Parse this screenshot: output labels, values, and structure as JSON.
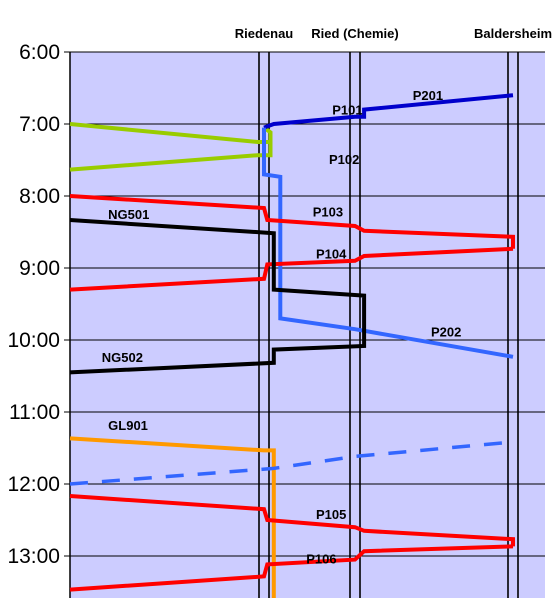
{
  "chart_data": {
    "type": "line",
    "title": "",
    "xlabel": "",
    "ylabel": "",
    "y_axis": {
      "unit": "minutes since midnight",
      "range": [
        360,
        815
      ],
      "tick_values": [
        360,
        420,
        480,
        540,
        600,
        660,
        720,
        780
      ],
      "tick_labels": [
        "6:00",
        "7:00",
        "8:00",
        "9:00",
        "10:00",
        "11:00",
        "12:00",
        "13:00"
      ]
    },
    "grid": true,
    "stations": [
      {
        "name": "Riedenau",
        "km": 0
      },
      {
        "name": "Ried (Chemie)",
        "km": 2.8
      },
      {
        "name": "Baldersheim",
        "km": 8
      }
    ],
    "colors": {
      "plot_bg": "#ccccff",
      "green": "#99cc00",
      "blue": "#0000cc",
      "lightblue": "#3366ff",
      "red": "#ff0000",
      "black": "#000000",
      "orange": "#ff9900"
    },
    "series": [
      {
        "name": "P101",
        "color": "green",
        "label_at": [
          2.1,
          408
        ],
        "points": [
          [
            -6,
            420
          ],
          [
            -0.2,
            435
          ],
          [
            0.2,
            435
          ]
        ]
      },
      {
        "name": "P102",
        "color": "green",
        "label_at": [
          2.0,
          449
        ],
        "points": [
          [
            -6,
            458
          ],
          [
            -0.2,
            446
          ],
          [
            0.2,
            446
          ],
          [
            0.2,
            427
          ],
          [
            0,
            423
          ]
        ]
      },
      {
        "name": "P201",
        "color": "blue",
        "label_at": [
          4.7,
          396
        ],
        "points": [
          [
            0,
            423
          ],
          [
            0.3,
            420
          ],
          [
            2.8,
            414
          ],
          [
            3.1,
            414
          ],
          [
            3.1,
            408
          ],
          [
            8,
            396
          ]
        ]
      },
      {
        "name": "P202",
        "color": "lightblue",
        "label_at": [
          5.3,
          593
        ],
        "points": [
          [
            0,
            423
          ],
          [
            0,
            462
          ],
          [
            0.5,
            464
          ],
          [
            0.5,
            582
          ],
          [
            2.8,
            591
          ],
          [
            8,
            614
          ]
        ]
      },
      {
        "name": "P103",
        "color": "red",
        "label_at": [
          1.5,
          493
        ],
        "points": [
          [
            -6,
            480
          ],
          [
            0,
            490
          ],
          [
            0.1,
            500
          ],
          [
            2.8,
            505
          ],
          [
            3.1,
            509
          ],
          [
            8,
            514
          ],
          [
            8,
            524
          ]
        ]
      },
      {
        "name": "P104",
        "color": "red",
        "label_at": [
          1.6,
          528
        ],
        "points": [
          [
            8,
            524
          ],
          [
            3.1,
            530
          ],
          [
            2.8,
            534
          ],
          [
            0.1,
            537
          ],
          [
            0,
            549
          ],
          [
            -6,
            558
          ]
        ]
      },
      {
        "name": "NG501",
        "color": "black",
        "label_at": [
          -4.9,
          495
        ],
        "points": [
          [
            -6,
            500
          ],
          [
            0.3,
            511
          ],
          [
            0.3,
            558
          ],
          [
            3.1,
            563
          ],
          [
            3.1,
            605
          ],
          [
            0.3,
            608
          ],
          [
            0.3,
            619
          ],
          [
            -6,
            627
          ]
        ]
      },
      {
        "name": "NG502",
        "color": "black",
        "label_at": [
          -5.1,
          614
        ],
        "points": []
      },
      {
        "name": "GL901",
        "color": "orange",
        "label_at": [
          -4.9,
          671
        ],
        "points": [
          [
            -6,
            682
          ],
          [
            0,
            692
          ],
          [
            0.3,
            692
          ],
          [
            0.3,
            815
          ]
        ]
      },
      {
        "name": "",
        "color": "lightblue",
        "dashed": true,
        "points": [
          [
            -6,
            720
          ],
          [
            0.3,
            707
          ],
          [
            2.8,
            697
          ],
          [
            8,
            685
          ]
        ]
      },
      {
        "name": "P105",
        "color": "red",
        "label_at": [
          1.6,
          745
        ],
        "points": [
          [
            -6,
            730
          ],
          [
            0,
            741
          ],
          [
            0.1,
            750
          ],
          [
            2.8,
            756
          ],
          [
            3.1,
            759
          ],
          [
            8,
            766
          ],
          [
            8,
            772
          ]
        ]
      },
      {
        "name": "P106",
        "color": "red",
        "label_at": [
          1.3,
          782
        ],
        "points": [
          [
            8,
            772
          ],
          [
            3.1,
            776
          ],
          [
            2.8,
            783
          ],
          [
            0.1,
            787
          ],
          [
            0,
            797
          ],
          [
            -6,
            808
          ]
        ]
      }
    ]
  }
}
